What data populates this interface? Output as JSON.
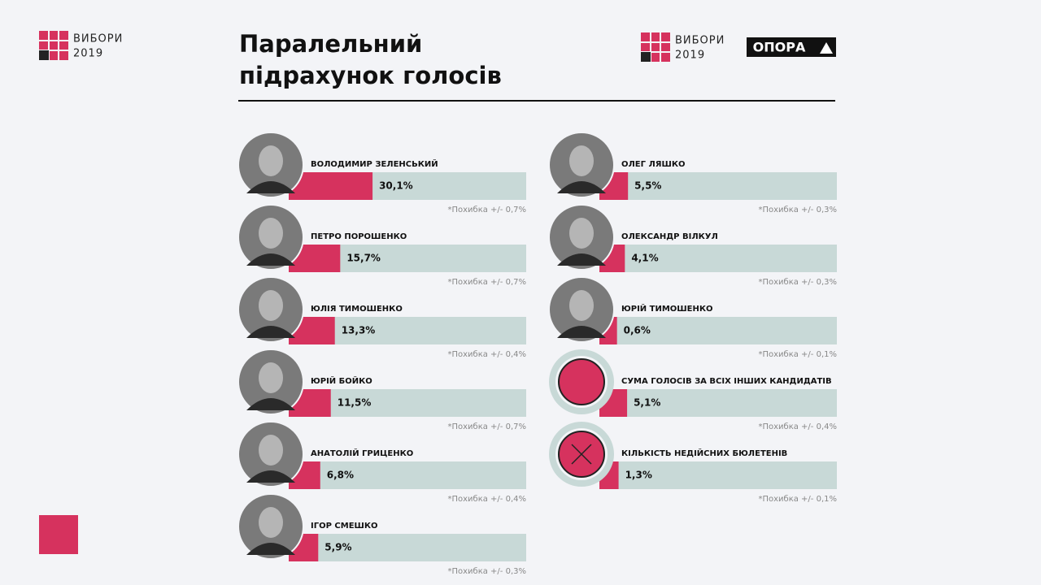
{
  "header": {
    "logo_word": "ВИБОРИ",
    "logo_year": "2019",
    "org": "ОПОРА"
  },
  "chart_data": {
    "type": "bar",
    "title": [
      "Паралельний",
      "підрахунок голосів"
    ],
    "categories": [
      "ВОЛОДИМИР ЗЕЛЕНСЬКИЙ",
      "ПЕТРО ПОРОШЕНКО",
      "ЮЛІЯ ТИМОШЕНКО",
      "ЮРІЙ БОЙКО",
      "АНАТОЛІЙ ГРИЦЕНКО",
      "ІГОР СМЕШКО",
      "ОЛЕГ ЛЯШКО",
      "ОЛЕКСАНДР ВІЛКУЛ",
      "ЮРІЙ ТИМОШЕНКО",
      "СУМА ГОЛОСІВ ЗА ВСІХ ІНШИХ КАНДИДАТІВ",
      "КІЛЬКІСТЬ НЕДІЙСНИХ БЮЛЕТЕНІВ"
    ],
    "values": [
      30.1,
      15.7,
      13.3,
      11.5,
      6.8,
      5.9,
      5.5,
      4.1,
      0.6,
      5.1,
      1.3
    ],
    "value_labels": [
      "30,1%",
      "15,7%",
      "13,3%",
      "11,5%",
      "6,8%",
      "5,9%",
      "5,5%",
      "4,1%",
      "0,6%",
      "5,1%",
      "1,3%"
    ],
    "notes": [
      "*Похибка +/- 0,7%",
      "*Похибка +/- 0,7%",
      "*Похибка +/- 0,4%",
      "*Похибка +/- 0,7%",
      "*Похибка +/- 0,4%",
      "*Похибка +/- 0,3%",
      "*Похибка +/- 0,3%",
      "*Похибка +/- 0,3%",
      "*Похибка +/- 0,1%",
      "*Похибка +/- 0,4%",
      "*Похибка +/- 0,1%"
    ],
    "xlim": [
      0,
      100
    ],
    "color": "#d6325e",
    "track_color": "#c8d9d7"
  }
}
